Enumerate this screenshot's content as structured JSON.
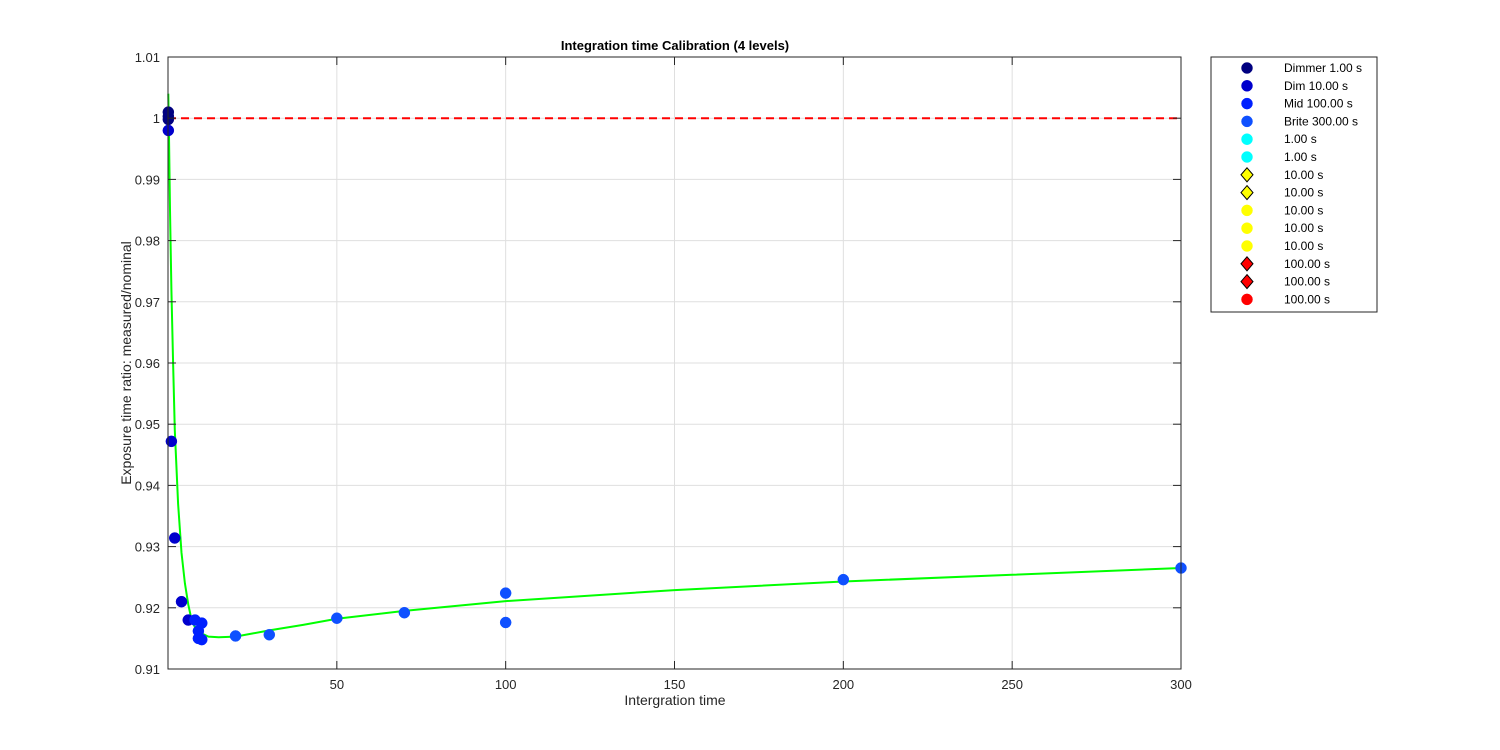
{
  "chart_data": {
    "type": "scatter",
    "title": "Integration time Calibration (4 levels)",
    "xlabel": "Intergration time",
    "ylabel": "Exposure time ratio: measured/nominal",
    "xlim": [
      0,
      300
    ],
    "ylim": [
      0.91,
      1.01
    ],
    "x_ticks": [
      50,
      100,
      150,
      200,
      250,
      300
    ],
    "y_ticks": [
      0.91,
      0.92,
      0.93,
      0.94,
      0.95,
      0.96,
      0.97,
      0.98,
      0.99,
      1,
      1.01
    ],
    "grid": true,
    "legend_position": "outside-top-right",
    "reference_line": {
      "y": 1.0,
      "color": "#ff0000",
      "style": "dashed"
    },
    "fit_curve": {
      "color": "#00ff00",
      "points": [
        [
          0.1,
          1.004
        ],
        [
          0.3,
          0.997
        ],
        [
          0.6,
          0.985
        ],
        [
          1,
          0.972
        ],
        [
          1.5,
          0.96
        ],
        [
          2,
          0.949
        ],
        [
          3,
          0.937
        ],
        [
          4,
          0.929
        ],
        [
          5,
          0.924
        ],
        [
          6,
          0.9205
        ],
        [
          7,
          0.918
        ],
        [
          8,
          0.9168
        ],
        [
          10,
          0.9158
        ],
        [
          12,
          0.9153
        ],
        [
          15,
          0.9152
        ],
        [
          20,
          0.9153
        ],
        [
          25,
          0.9158
        ],
        [
          30,
          0.9163
        ],
        [
          40,
          0.9172
        ],
        [
          50,
          0.9182
        ],
        [
          70,
          0.9195
        ],
        [
          100,
          0.9211
        ],
        [
          150,
          0.9229
        ],
        [
          200,
          0.9243
        ],
        [
          250,
          0.9254
        ],
        [
          300,
          0.9265
        ]
      ]
    },
    "series": [
      {
        "name": "Dimmer 1.00 s",
        "color": "#000080",
        "marker": "circle",
        "points": [
          [
            0.1,
            1.001
          ],
          [
            0.1,
            0.9998
          ],
          [
            0.1,
            1.0003
          ]
        ]
      },
      {
        "name": "Dim 10.00 s",
        "color": "#0000cd",
        "marker": "circle",
        "points": [
          [
            0.1,
            0.998
          ],
          [
            1,
            0.9472
          ],
          [
            2,
            0.9314
          ],
          [
            4,
            0.921
          ],
          [
            6,
            0.918
          ]
        ]
      },
      {
        "name": "Mid 100.00 s",
        "color": "#0020ff",
        "marker": "circle",
        "points": [
          [
            8,
            0.918
          ],
          [
            9,
            0.9162
          ],
          [
            9,
            0.915
          ],
          [
            10,
            0.9175
          ],
          [
            10,
            0.9148
          ]
        ]
      },
      {
        "name": "Brite 300.00 s",
        "color": "#0f50ff",
        "marker": "circle",
        "points": [
          [
            20,
            0.9154
          ],
          [
            30,
            0.9156
          ],
          [
            50,
            0.9183
          ],
          [
            70,
            0.9192
          ],
          [
            100,
            0.9224
          ],
          [
            100,
            0.9176
          ],
          [
            200,
            0.9246
          ],
          [
            300,
            0.9265
          ]
        ]
      }
    ],
    "legend": [
      {
        "label": "Dimmer 1.00 s",
        "marker": "circle",
        "color": "#000080"
      },
      {
        "label": "Dim 10.00 s",
        "marker": "circle",
        "color": "#0000cd"
      },
      {
        "label": "Mid 100.00 s",
        "marker": "circle",
        "color": "#0020ff"
      },
      {
        "label": "Brite 300.00 s",
        "marker": "circle",
        "color": "#0f50ff"
      },
      {
        "label": "1.00 s",
        "marker": "circle",
        "color": "#00ffff"
      },
      {
        "label": "1.00 s",
        "marker": "circle",
        "color": "#00ffff"
      },
      {
        "label": "10.00 s",
        "marker": "diamond",
        "color": "#ffff00"
      },
      {
        "label": "10.00 s",
        "marker": "diamond",
        "color": "#ffff00"
      },
      {
        "label": "10.00 s",
        "marker": "circle",
        "color": "#ffff00"
      },
      {
        "label": "10.00 s",
        "marker": "circle",
        "color": "#ffff00"
      },
      {
        "label": "10.00 s",
        "marker": "circle",
        "color": "#ffff00"
      },
      {
        "label": "100.00 s",
        "marker": "diamond",
        "color": "#ff0000"
      },
      {
        "label": "100.00 s",
        "marker": "diamond",
        "color": "#ff0000"
      },
      {
        "label": "100.00 s",
        "marker": "circle",
        "color": "#ff0000"
      }
    ]
  }
}
